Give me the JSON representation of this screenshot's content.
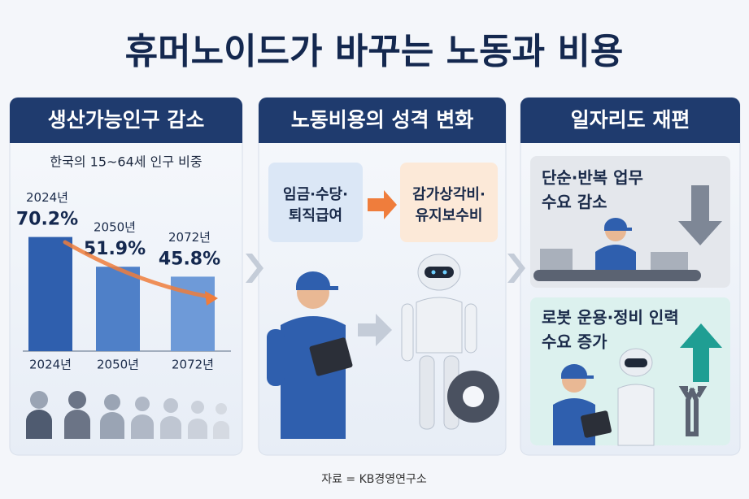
{
  "title": "휴머노이드가 바꾸는 노동과 비용",
  "panels": [
    {
      "header": "생산가능인구 감소"
    },
    {
      "header": "노동비용의 성격 변화",
      "before": [
        "임금·수당·",
        "퇴직급여"
      ],
      "after": [
        "감가상각비·",
        "유지보수비"
      ]
    },
    {
      "header": "일자리도 재편",
      "top": [
        "단순·반복 업무",
        "수요 감소"
      ],
      "bottom": [
        "로봇 운용·정비 인력",
        "수요 증가"
      ]
    }
  ],
  "chart_data": {
    "type": "bar",
    "subtitle": "한국의 15~64세 인구 비중",
    "categories": [
      "2024년",
      "2050년",
      "2072년"
    ],
    "values": [
      70.2,
      51.9,
      45.8
    ],
    "value_labels": [
      "70.2%",
      "51.9%",
      "45.8%"
    ],
    "colors": [
      "#2f5fae",
      "#4f80c8",
      "#6e9ad8"
    ]
  },
  "source": "자료 = KB경영연구소"
}
